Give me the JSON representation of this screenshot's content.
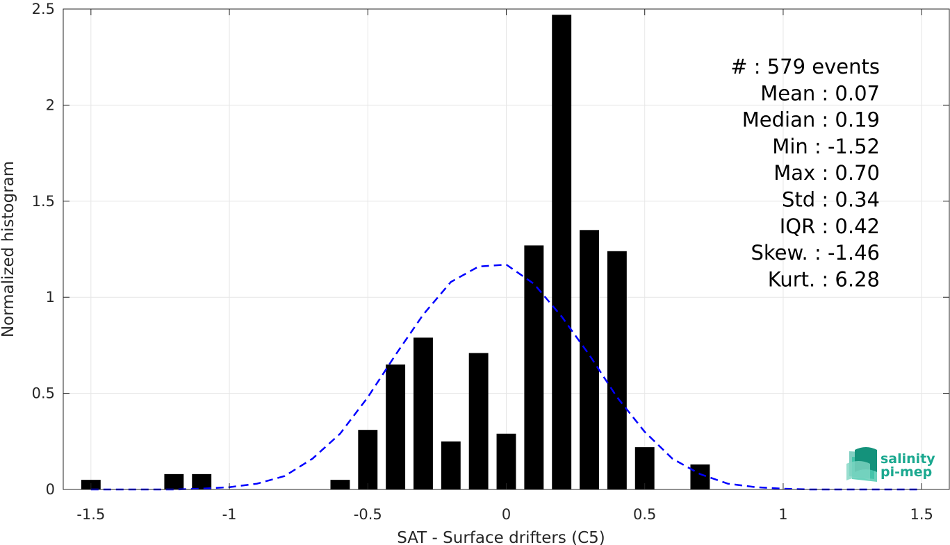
{
  "chart_data": {
    "type": "bar",
    "xlabel": "SAT - Surface drifters (C5)",
    "ylabel": "Normalized histogram",
    "xlim": [
      -1.6,
      1.6
    ],
    "ylim": [
      0,
      2.5
    ],
    "grid": true,
    "x_ticks": [
      -1.5,
      -1,
      -0.5,
      0,
      0.5,
      1,
      1.5
    ],
    "x_tick_labels": [
      "-1.5",
      "-1",
      "-0.5",
      "0",
      "0.5",
      "1",
      "1.5"
    ],
    "y_ticks": [
      0,
      0.5,
      1,
      1.5,
      2,
      2.5
    ],
    "y_tick_labels": [
      "0",
      "0.5",
      "1",
      "1.5",
      "2",
      "2.5"
    ],
    "bar_width": 0.07,
    "bars": {
      "x": [
        -1.5,
        -1.2,
        -1.1,
        -0.6,
        -0.5,
        -0.4,
        -0.3,
        -0.2,
        -0.1,
        0.0,
        0.1,
        0.2,
        0.3,
        0.4,
        0.5,
        0.7
      ],
      "values": [
        0.05,
        0.08,
        0.08,
        0.05,
        0.31,
        0.65,
        0.79,
        0.25,
        0.71,
        0.29,
        1.27,
        2.47,
        1.35,
        1.24,
        0.22,
        0.13
      ],
      "color": "#000000"
    },
    "fit_curve": {
      "style": "dashed",
      "color": "#0000ff",
      "x": [
        -1.5,
        -1.4,
        -1.3,
        -1.2,
        -1.1,
        -1.0,
        -0.9,
        -0.8,
        -0.7,
        -0.6,
        -0.5,
        -0.4,
        -0.3,
        -0.2,
        -0.1,
        0.0,
        0.1,
        0.2,
        0.3,
        0.4,
        0.5,
        0.6,
        0.7,
        0.8,
        0.9,
        1.0,
        1.1,
        1.2,
        1.3,
        1.4,
        1.5
      ],
      "y": [
        0.0,
        0.0,
        0.0,
        0.0,
        0.004,
        0.012,
        0.03,
        0.07,
        0.16,
        0.29,
        0.48,
        0.7,
        0.91,
        1.08,
        1.16,
        1.17,
        1.07,
        0.9,
        0.7,
        0.48,
        0.3,
        0.16,
        0.08,
        0.03,
        0.012,
        0.004,
        0.0,
        0.0,
        0.0,
        0.0,
        0.0
      ]
    },
    "annotations": [
      "#  : 579 events",
      "Mean : 0.07",
      "Median : 0.19",
      "Min : -1.52",
      "Max : 0.70",
      "Std : 0.34",
      "IQR : 0.42",
      "Skew. : -1.46",
      "Kurt. : 6.28"
    ]
  },
  "logo": {
    "line1": "salinity",
    "line2": "pi-mep",
    "color": "#1aa88f"
  }
}
